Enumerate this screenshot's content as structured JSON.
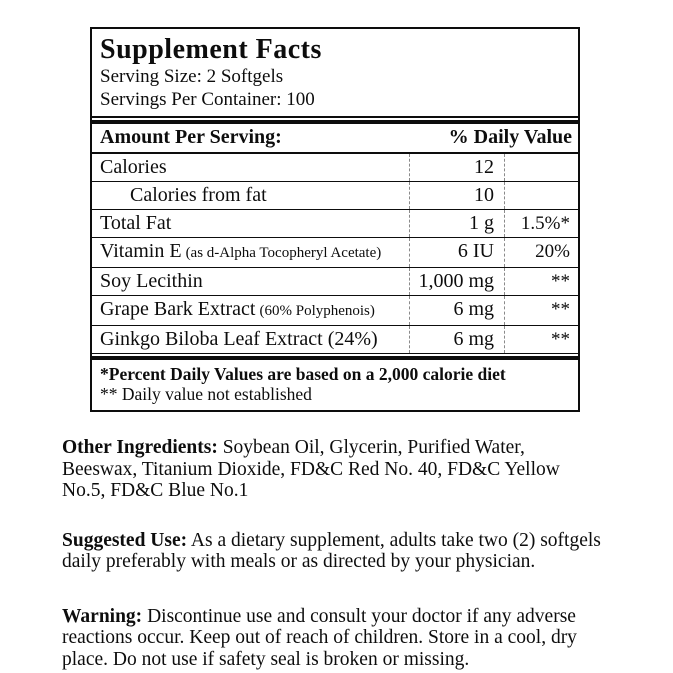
{
  "label": {
    "title": "Supplement Facts",
    "serving_size": "Serving Size: 2 Softgels",
    "servings_per_container": "Servings Per Container: 100",
    "header": {
      "amount_per_serving": "Amount Per Serving:",
      "daily_value": "% Daily Value"
    },
    "rows": [
      {
        "name": "Calories",
        "name_small": "",
        "amount": "12",
        "dv": "",
        "indent": false
      },
      {
        "name": "Calories from fat",
        "name_small": "",
        "amount": "10",
        "dv": "",
        "indent": true
      },
      {
        "name": "Total Fat",
        "name_small": "",
        "amount": "1 g",
        "dv": "1.5%*",
        "indent": false
      },
      {
        "name": "Vitamin E",
        "name_small": "(as d-Alpha Tocopheryl Acetate)",
        "amount": "6 IU",
        "dv": "20%",
        "indent": false
      },
      {
        "name": "Soy Lecithin",
        "name_small": "",
        "amount": "1,000 mg",
        "dv": "**",
        "indent": false
      },
      {
        "name": "Grape Bark Extract",
        "name_small": "(60% Polyphenois)",
        "amount": "6 mg",
        "dv": "**",
        "indent": false
      },
      {
        "name": "Ginkgo Biloba Leaf Extract (24%)",
        "name_small": "",
        "amount": "6 mg",
        "dv": "**",
        "indent": false
      }
    ],
    "footnotes": [
      "*Percent Daily Values are based on a 2,000 calorie diet",
      "** Daily value not established"
    ]
  },
  "paragraphs": [
    {
      "lead": "Other Ingredients:",
      "text": " Soybean Oil, Glycerin, Purified Water, Beeswax, Titanium Dioxide, FD&C Red No. 40, FD&C Yellow No.5, FD&C Blue No.1"
    },
    {
      "lead": "Suggested Use:",
      "text": " As a dietary supplement, adults take two (2) softgels daily preferably with meals or as directed by your physician."
    },
    {
      "lead": "Warning:",
      "text": " Discontinue use and consult your doctor if any adverse reactions occur.  Keep out of reach of children. Store in a cool, dry place. Do not use if safety seal is broken or missing."
    }
  ],
  "colors": {
    "text": "#0d0d0d",
    "background": "#ffffff",
    "divider_dashed": "#8a8a8a"
  }
}
